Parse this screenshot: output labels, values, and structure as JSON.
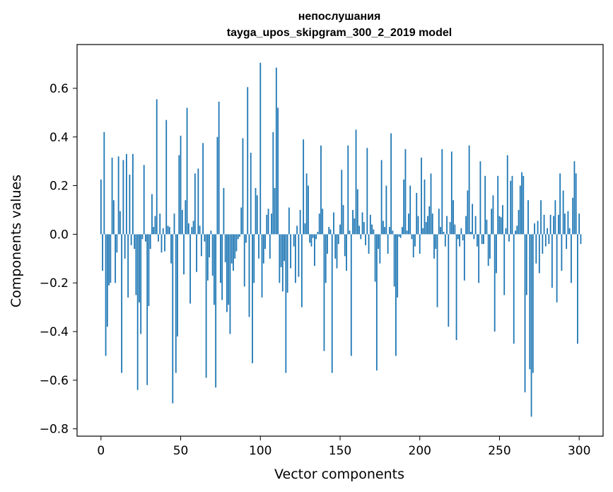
{
  "chart_data": {
    "type": "bar",
    "title_line1": "непослушания",
    "title_line2": "tayga_upos_skipgram_300_2_2019 model",
    "xlabel": "Vector components",
    "ylabel": "Components values",
    "xlim": [
      -15,
      315
    ],
    "ylim": [
      -0.83,
      0.78
    ],
    "xticks": [
      0,
      50,
      100,
      150,
      200,
      250,
      300
    ],
    "xtick_labels": [
      "0",
      "50",
      "100",
      "150",
      "200",
      "250",
      "300"
    ],
    "yticks": [
      -0.8,
      -0.6,
      -0.4,
      -0.2,
      0.0,
      0.2,
      0.4,
      0.6
    ],
    "ytick_labels": [
      "−0.8",
      "−0.6",
      "−0.4",
      "−0.2",
      "0.0",
      "0.2",
      "0.4",
      "0.6"
    ],
    "bar_color": "#1f77b4",
    "values": [
      0.225,
      -0.15,
      0.42,
      -0.5,
      -0.38,
      -0.21,
      -0.2,
      0.315,
      0.14,
      -0.2,
      -0.075,
      0.32,
      0.095,
      -0.57,
      0.305,
      -0.1,
      0.33,
      -0.26,
      0.245,
      -0.045,
      0.33,
      -0.06,
      -0.25,
      -0.64,
      -0.28,
      -0.41,
      -0.02,
      0.285,
      -0.03,
      -0.62,
      -0.295,
      -0.06,
      0.165,
      0.03,
      0.075,
      0.555,
      -0.03,
      0.085,
      -0.075,
      0.025,
      -0.07,
      0.47,
      0.035,
      0.03,
      -0.12,
      -0.695,
      0.085,
      -0.57,
      -0.42,
      0.325,
      0.405,
      0.1,
      -0.165,
      0.14,
      0.52,
      0.045,
      -0.285,
      0.03,
      0.055,
      0.25,
      -0.155,
      0.27,
      0.035,
      -0.09,
      0.375,
      -0.03,
      -0.59,
      -0.19,
      -0.095,
      0.015,
      -0.17,
      -0.29,
      -0.63,
      0.4,
      0.545,
      -0.2,
      -0.27,
      0.19,
      -0.115,
      -0.32,
      -0.29,
      -0.41,
      -0.12,
      -0.15,
      -0.1,
      -0.07,
      -0.02,
      -0.01,
      0.11,
      0.395,
      -0.215,
      -0.035,
      0.605,
      -0.34,
      0.335,
      -0.53,
      -0.2,
      0.19,
      0.16,
      -0.1,
      0.705,
      -0.26,
      -0.12,
      -0.06,
      0.08,
      0.105,
      -0.1,
      0.085,
      0.42,
      0.19,
      0.685,
      0.52,
      -0.2,
      -0.135,
      -0.235,
      -0.11,
      -0.57,
      -0.24,
      0.11,
      -0.14,
      0.0,
      -0.05,
      -0.2,
      0.035,
      -0.175,
      0.1,
      -0.3,
      0.39,
      0.045,
      0.25,
      0.2,
      -0.035,
      -0.05,
      -0.015,
      -0.13,
      -0.02,
      0.01,
      0.085,
      0.365,
      0.105,
      -0.48,
      -0.2,
      -0.08,
      0.03,
      0.02,
      -0.57,
      0.09,
      -0.1,
      -0.14,
      -0.04,
      0.04,
      0.265,
      0.12,
      -0.09,
      -0.15,
      0.365,
      0.015,
      -0.5,
      0.1,
      0.065,
      0.43,
      0.185,
      0.035,
      -0.02,
      0.09,
      0.05,
      -0.045,
      0.355,
      -0.08,
      0.08,
      0.04,
      0.02,
      -0.195,
      -0.56,
      -0.06,
      -0.12,
      0.305,
      0.055,
      0.03,
      0.2,
      -0.08,
      0.03,
      0.415,
      0.015,
      -0.215,
      -0.5,
      -0.26,
      -0.01,
      -0.015,
      0.03,
      0.225,
      0.35,
      0.015,
      0.085,
      0.2,
      -0.02,
      -0.095,
      -0.05,
      0.17,
      0.075,
      -0.08,
      0.315,
      0.025,
      0.225,
      0.05,
      0.075,
      0.115,
      0.25,
      0.085,
      -0.1,
      -0.06,
      -0.3,
      0.105,
      0.03,
      0.35,
      0.01,
      -0.05,
      0.075,
      -0.38,
      0.05,
      0.34,
      0.14,
      0.04,
      -0.435,
      -0.02,
      -0.05,
      0.025,
      -0.025,
      -0.19,
      0.075,
      0.18,
      0.365,
      0.01,
      0.125,
      -0.02,
      0.075,
      -0.05,
      -0.2,
      0.3,
      -0.04,
      -0.04,
      0.24,
      0.06,
      -0.13,
      -0.1,
      0.105,
      0.16,
      -0.4,
      -0.16,
      0.24,
      0.075,
      0.07,
      0.12,
      -0.25,
      0.025,
      0.325,
      -0.03,
      0.22,
      0.24,
      -0.45,
      0.015,
      0.035,
      0.1,
      0.2,
      0.255,
      0.24,
      -0.65,
      -0.25,
      0.14,
      -0.555,
      -0.75,
      -0.57,
      0.045,
      -0.12,
      0.055,
      -0.16,
      0.14,
      -0.08,
      0.08,
      -0.05,
      0.025,
      -0.04,
      0.08,
      -0.22,
      0.075,
      0.14,
      -0.28,
      0.08,
      0.25,
      -0.15,
      0.18,
      0.085,
      -0.06,
      0.095,
      0.025,
      -0.2,
      0.15,
      0.3,
      0.25,
      -0.45,
      0.085,
      -0.04
    ]
  }
}
